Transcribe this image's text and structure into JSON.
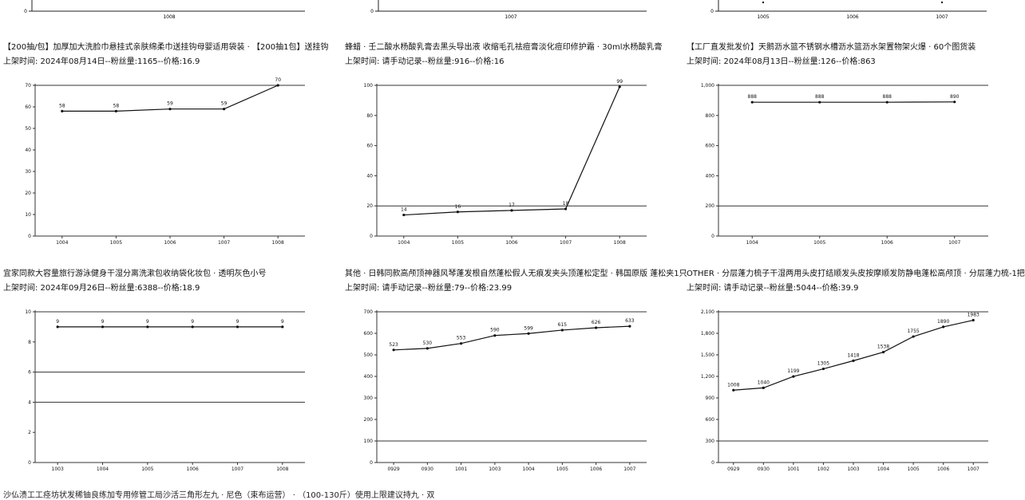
{
  "top_fragments": [
    {
      "ticks_x": [
        "1008"
      ]
    },
    {
      "ticks_x": [
        "1007"
      ]
    },
    {
      "ticks_x": [
        "1005",
        "1006",
        "1007"
      ]
    }
  ],
  "panels": [
    {
      "title": "【200抽/包】加厚加大洗脸巾悬挂式亲肤绵柔巾送挂钩母婴适用袋装 · 【200抽1包】送挂钩",
      "meta": "上架时间:  2024年08月14日--粉丝量:1165--价格:16.9"
    },
    {
      "title": "蜂蜡 · 壬二酸水杨酸乳膏去黑头导出液 收缩毛孔祛痘膏淡化痘印修护霜 · 30ml水杨酸乳膏",
      "meta": "上架时间:  请手动记录--粉丝量:916--价格:16"
    },
    {
      "title": "【工厂直发批发价】天鹅沥水篮不锈钢水槽沥水篮沥水架置物架火爆 · 60个图货装",
      "meta": "上架时间:  2024年08月13日--粉丝量:126--价格:863"
    },
    {
      "title": "宜家同款大容量旅行游泳健身干湿分离洗漱包收纳袋化妆包 · 透明灰色小号",
      "meta": "上架时间:  2024年09月26日--粉丝量:6388--价格:18.9"
    },
    {
      "title": "其他 · 日韩同款高颅顶神器风琴蓬发根自然蓬松假人无痕发夹头顶蓬松定型 · 韩国原版 蓬松夹1只",
      "meta": "上架时间:  请手动记录--粉丝量:79--价格:23.99"
    },
    {
      "title": "OTHER · 分层蓬力梳子干湿两用头皮打结顺发头皮按摩顺发防静电蓬松高颅顶 · 分层蓬力梳-1把",
      "meta": "上架时间:  请手动记录--粉丝量:5044--价格:39.9"
    }
  ],
  "chart_data": [
    {
      "type": "line",
      "categories": [
        "1004",
        "1005",
        "1006",
        "1007",
        "1008"
      ],
      "values": [
        58,
        58,
        59,
        59,
        70
      ],
      "ylim": [
        0,
        70
      ],
      "yticks": [
        "0",
        "10",
        "20",
        "30",
        "40",
        "50",
        "60",
        "70"
      ],
      "ytick_values": [
        0,
        10,
        20,
        30,
        40,
        50,
        60,
        70
      ],
      "grid": [
        70
      ]
    },
    {
      "type": "line",
      "categories": [
        "1004",
        "1005",
        "1006",
        "1007",
        "1008"
      ],
      "values": [
        14,
        16,
        17,
        18,
        99
      ],
      "ylim": [
        0,
        100
      ],
      "yticks": [
        "0",
        "20",
        "40",
        "60",
        "80",
        "100"
      ],
      "ytick_values": [
        0,
        20,
        40,
        60,
        80,
        100
      ],
      "grid": [
        100,
        20
      ]
    },
    {
      "type": "line",
      "categories": [
        "1004",
        "1005",
        "1006",
        "1007"
      ],
      "values": [
        888,
        888,
        888,
        890
      ],
      "ylim": [
        0,
        1000
      ],
      "yticks": [
        "0",
        "200",
        "400",
        "600",
        "800",
        "1,000"
      ],
      "ytick_values": [
        0,
        200,
        400,
        600,
        800,
        1000
      ],
      "grid": [
        1000,
        200
      ]
    },
    {
      "type": "line",
      "categories": [
        "1003",
        "1004",
        "1005",
        "1006",
        "1007",
        "1008"
      ],
      "values": [
        9,
        9,
        9,
        9,
        9,
        9
      ],
      "ylim": [
        0,
        10
      ],
      "yticks": [
        "0",
        "2",
        "4",
        "6",
        "8",
        "10"
      ],
      "ytick_values": [
        0,
        2,
        4,
        6,
        8,
        10
      ],
      "grid": [
        10,
        6,
        4
      ]
    },
    {
      "type": "line",
      "categories": [
        "0929",
        "0930",
        "1001",
        "1003",
        "1004",
        "1005",
        "1006",
        "1007"
      ],
      "values": [
        523,
        530,
        553,
        590,
        599,
        615,
        626,
        633
      ],
      "ylim": [
        0,
        700
      ],
      "yticks": [
        "0",
        "100",
        "200",
        "300",
        "400",
        "500",
        "600",
        "700"
      ],
      "ytick_values": [
        0,
        100,
        200,
        300,
        400,
        500,
        600,
        700
      ],
      "grid": [
        700,
        100
      ]
    },
    {
      "type": "line",
      "categories": [
        "0929",
        "0930",
        "1001",
        "1002",
        "1003",
        "1004",
        "1005",
        "1006",
        "1007"
      ],
      "values": [
        1008,
        1040,
        1199,
        1305,
        1418,
        1538,
        1755,
        1890,
        1983
      ],
      "ylim": [
        0,
        2100
      ],
      "yticks": [
        "0",
        "300",
        "600",
        "900",
        "1,200",
        "1,500",
        "1,800",
        "2,100"
      ],
      "ytick_values": [
        0,
        300,
        600,
        900,
        1200,
        1500,
        1800,
        2100
      ],
      "grid": [
        2100,
        300
      ]
    }
  ],
  "bottom_text": "沙仏渍工工痉坊状发稀铀良练加专用修管工局沙活三角形左九 · 尼色（束布运营） · （100-130斤）使用上限建议持九 · 双"
}
